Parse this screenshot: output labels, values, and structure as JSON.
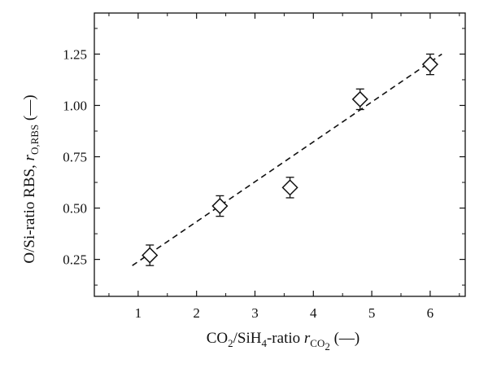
{
  "chart_data": {
    "type": "scatter",
    "xlabel": {
      "parts": [
        "CO",
        "2",
        "/SiH",
        "4",
        "-ratio ",
        "r",
        "CO",
        "2",
        " (—)"
      ]
    },
    "ylabel": {
      "parts": [
        "O/Si-ratio RBS, ",
        "r",
        "O,RBS",
        " (—)"
      ]
    },
    "xlim": [
      0.25,
      6.6
    ],
    "ylim": [
      0.07,
      1.45
    ],
    "x_ticks": [
      1,
      2,
      3,
      4,
      5,
      6
    ],
    "x_tick_labels": [
      "1",
      "2",
      "3",
      "4",
      "5",
      "6"
    ],
    "y_ticks": [
      0.25,
      0.5,
      0.75,
      1.0,
      1.25
    ],
    "y_tick_labels": [
      "0.25",
      "0.50",
      "0.75",
      "1.00",
      "1.25"
    ],
    "grid": false,
    "series": [
      {
        "marker": "diamond",
        "points": [
          {
            "x": 1.2,
            "y": 0.27,
            "err": 0.05
          },
          {
            "x": 2.4,
            "y": 0.51,
            "err": 0.05
          },
          {
            "x": 3.6,
            "y": 0.6,
            "err": 0.05
          },
          {
            "x": 4.8,
            "y": 1.03,
            "err": 0.05
          },
          {
            "x": 6.0,
            "y": 1.2,
            "err": 0.05
          }
        ]
      }
    ],
    "fit_line": {
      "style": "dashed",
      "x": [
        0.9,
        6.2
      ],
      "y": [
        0.22,
        1.25
      ]
    }
  }
}
